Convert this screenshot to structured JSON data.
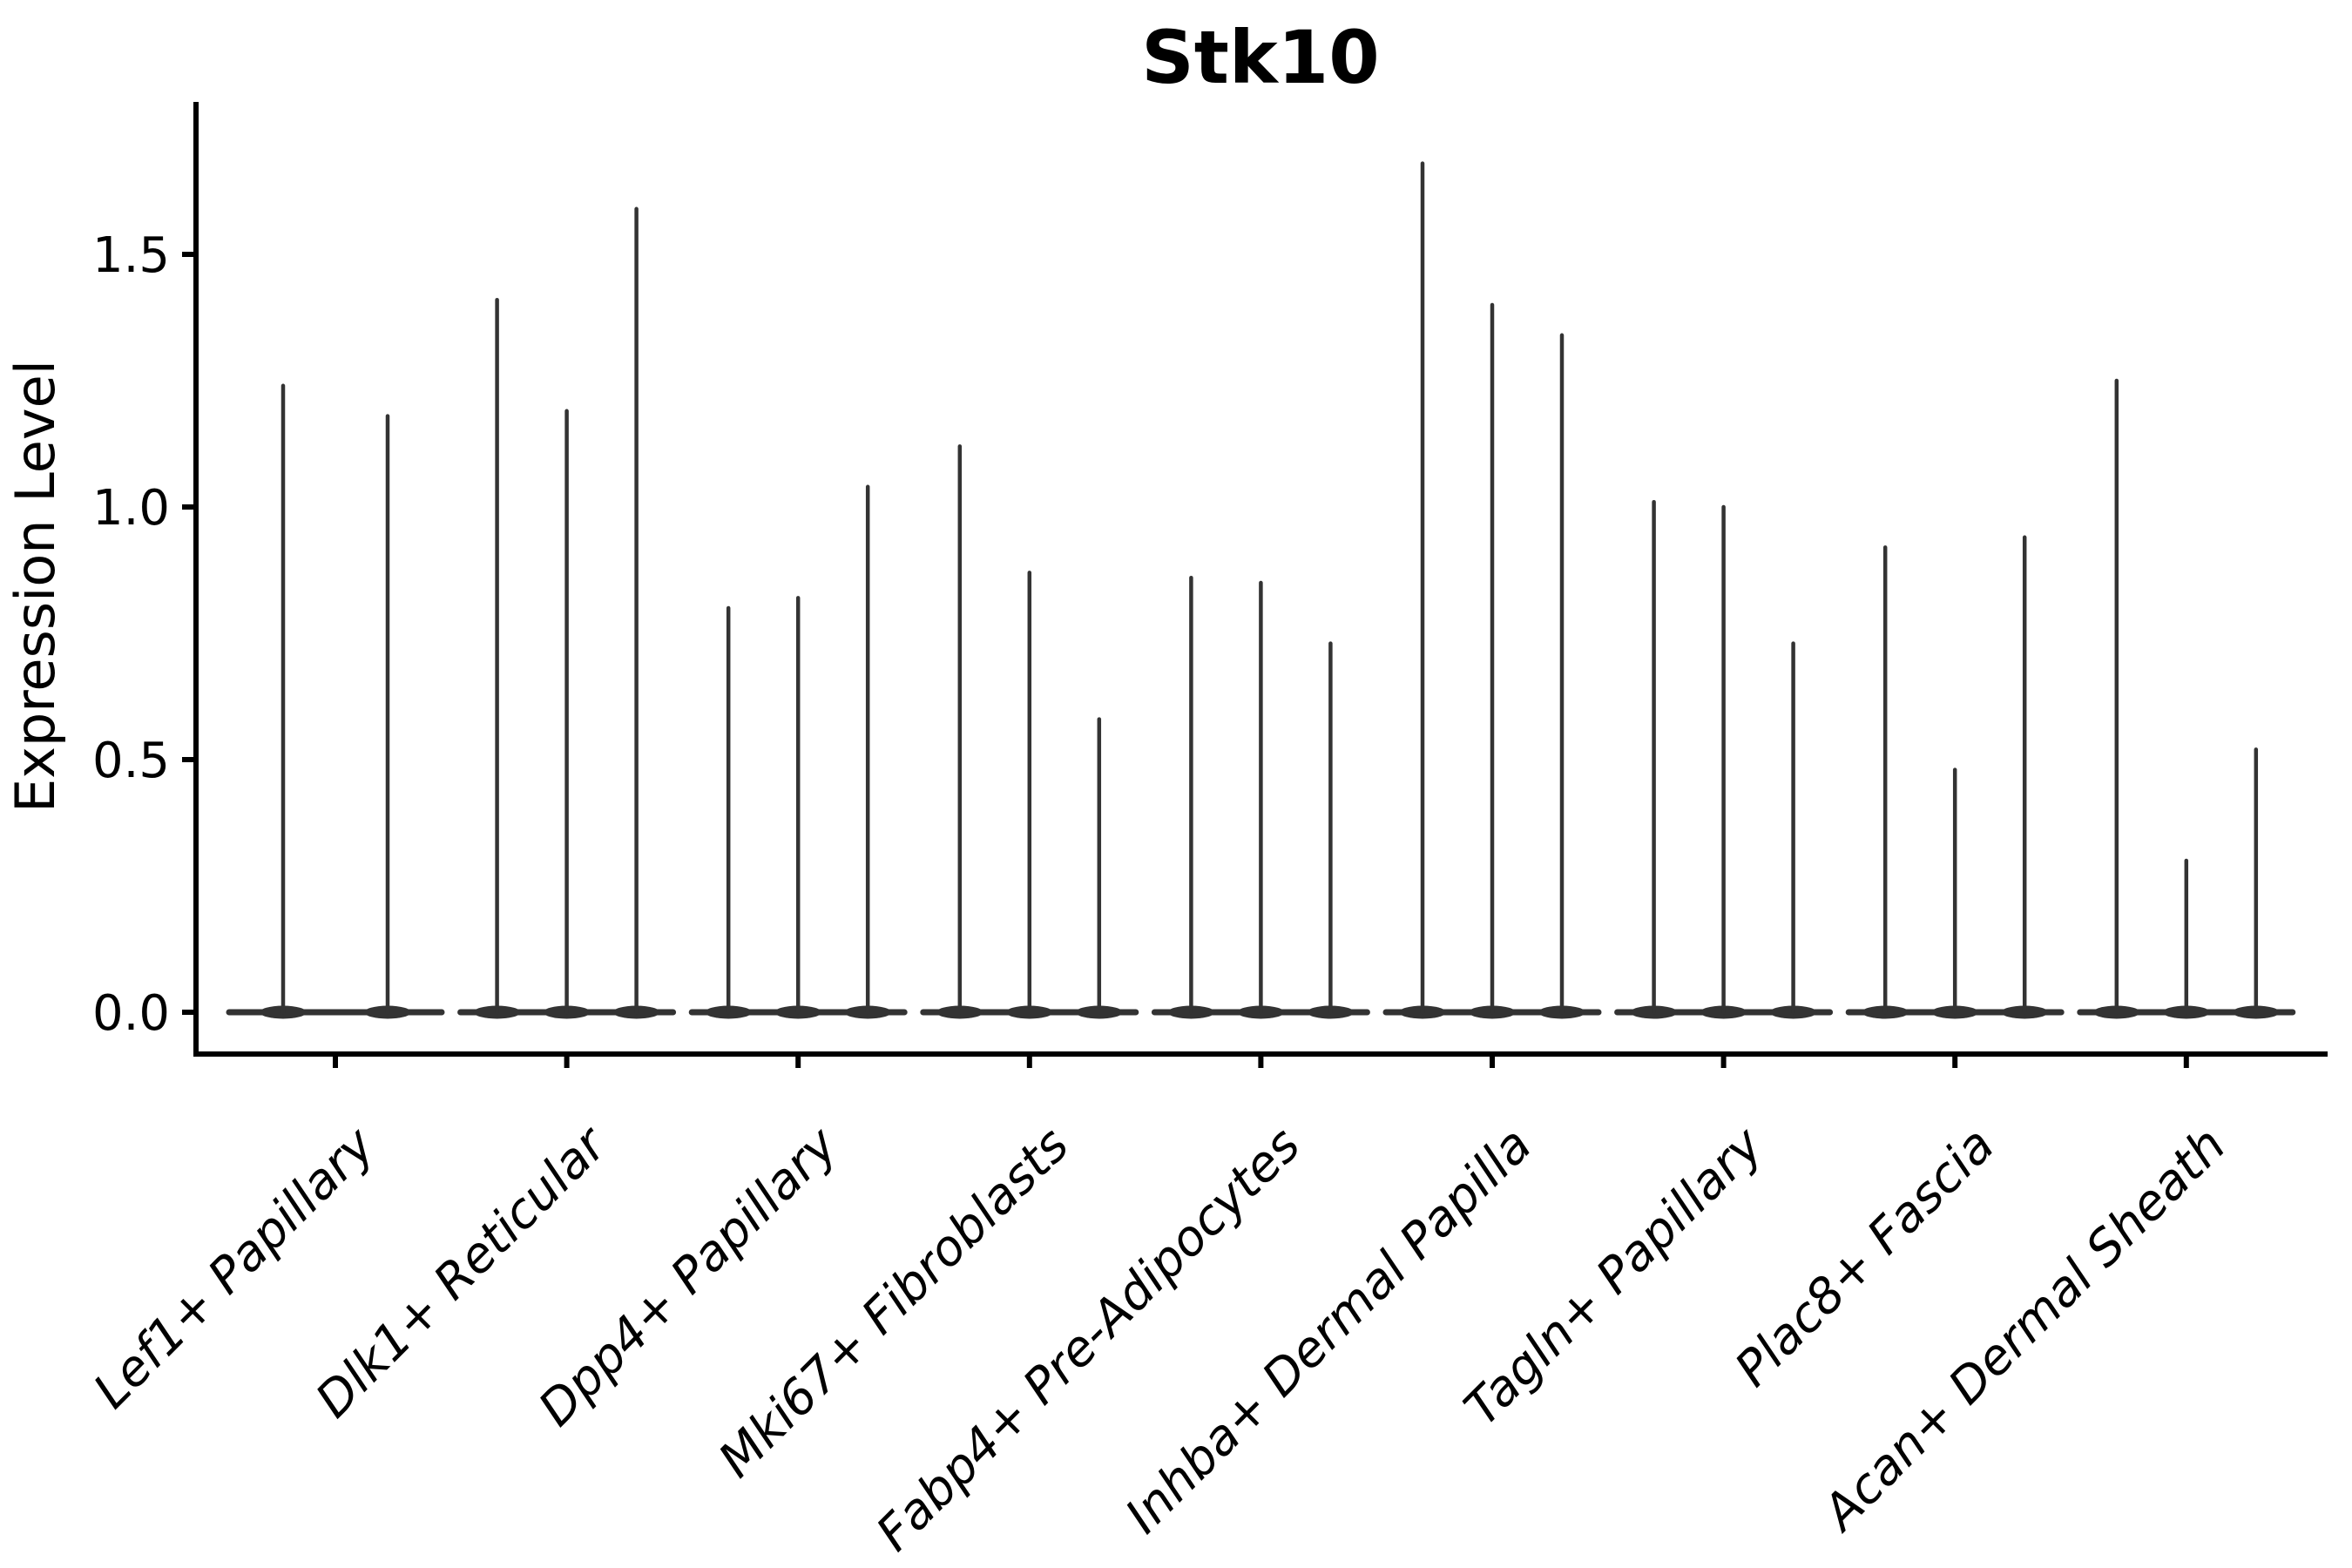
{
  "page": {
    "background": "#ffffff"
  },
  "chart_data": {
    "type": "violin",
    "title": "Stk10",
    "ylabel": "Expression Level",
    "xlabel": "",
    "ytick_labels": [
      "0.0",
      "0.5",
      "1.0",
      "1.5"
    ],
    "ytick_values": [
      0.0,
      0.5,
      1.0,
      1.5
    ],
    "ylim": [
      -0.08,
      1.8
    ],
    "grid": false,
    "legend": null,
    "x_label_rotation_deg": 45,
    "x_label_style": "italic",
    "violin_color": "#333333",
    "axis_color": "#000000",
    "categories": [
      "Lef1+ Papillary",
      "Dlk1+ Reticular",
      "Dpp4+ Papillary",
      "Mki67+ Fibroblasts",
      "Fabp4+ Pre-Adipocytes",
      "Inhba+ Dermal Papilla",
      "Tagln+ Papillary",
      "Plac8+ Fascia",
      "Acan+ Dermal Sheath"
    ],
    "groups": [
      {
        "category": "Lef1+ Papillary",
        "spike_values": [
          1.24,
          1.18
        ]
      },
      {
        "category": "Dlk1+ Reticular",
        "spike_values": [
          1.41,
          1.19,
          1.59
        ]
      },
      {
        "category": "Dpp4+ Papillary",
        "spike_values": [
          0.8,
          0.82,
          1.04
        ]
      },
      {
        "category": "Mki67+ Fibroblasts",
        "spike_values": [
          1.12,
          0.87,
          0.58
        ]
      },
      {
        "category": "Fabp4+ Pre-Adipocytes",
        "spike_values": [
          0.86,
          0.85,
          0.73
        ]
      },
      {
        "category": "Inhba+ Dermal Papilla",
        "spike_values": [
          1.68,
          1.4,
          1.34
        ]
      },
      {
        "category": "Tagln+ Papillary",
        "spike_values": [
          1.01,
          1.0,
          0.73
        ]
      },
      {
        "category": "Plac8+ Fascia",
        "spike_values": [
          0.92,
          0.48,
          0.94
        ]
      },
      {
        "category": "Acan+ Dermal Sheath",
        "spike_values": [
          1.25,
          0.3,
          0.52
        ]
      }
    ]
  }
}
